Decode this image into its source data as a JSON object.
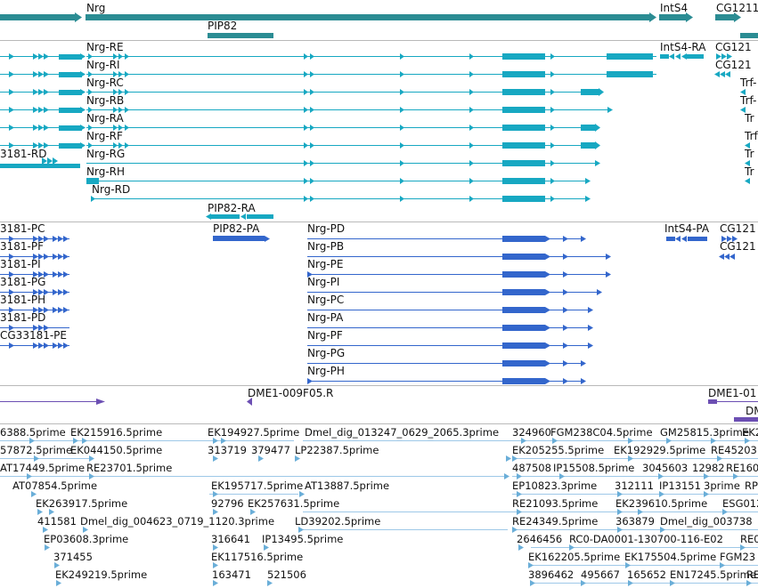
{
  "colors": {
    "gene": "#2b8c93",
    "mrna": "#17a8c2",
    "protein": "#3366cc",
    "est": "#6aaed8",
    "est_line": "#9ec8e8",
    "match": "#6c4fb3",
    "separator": "#b9b9b9"
  },
  "tracks": {
    "gene": {
      "labels": [
        "Nrg",
        "IntS4",
        "CG1211",
        "PIP82"
      ]
    },
    "transcript": {
      "labels": [
        "Nrg-RE",
        "IntS4-RA",
        "CG121",
        "Nrg-RI",
        "CG121",
        "Nrg-RC",
        "Trf-",
        "Nrg-RB",
        "Trf-",
        "Nrg-RA",
        "Trf",
        "Nrg-RF",
        "Tr",
        "3181-RD",
        "Nrg-RG",
        "Tr",
        "Nrg-RH",
        "Tr",
        "Nrg-RD",
        "PIP82-RA"
      ]
    },
    "protein": {
      "labels": [
        "3181-PC",
        "PIP82-PA",
        "Nrg-PD",
        "IntS4-PA",
        "CG121",
        "3181-PF",
        "Nrg-PB",
        "CG121",
        "3181-PI",
        "Nrg-PE",
        "3181-PG",
        "Nrg-PI",
        "3181-PH",
        "Nrg-PC",
        "3181-PD",
        "Nrg-PA",
        "CG33181-PE",
        "Nrg-PF",
        "Nrg-PG",
        "Nrg-PH"
      ]
    },
    "match": {
      "labels": [
        "DME1-009F05.R",
        "DME1-01",
        "DM"
      ]
    },
    "est": {
      "labels": [
        "6388.5prime",
        "EK215916.5prime",
        "EK194927.5prime",
        "Dmel_dig_013247_0629_2065.3prime",
        "324960",
        "FGM238C04.5prime",
        "GM25815.3prime",
        "EK20",
        "57872.5prime",
        "EK044150.5prime",
        "313719",
        "379477",
        "LP22387.5prime",
        "EK205255.5prime",
        "EK192929.5prime",
        "RE45203",
        "AT17449.5prime",
        "RE23701.5prime",
        "487508",
        "IP15508.5prime",
        "3045603",
        "12982",
        "RE160",
        "AT07854.5prime",
        "EK195717.5prime",
        "AT13887.5prime",
        "EP10823.3prime",
        "312111",
        "IP13151",
        "3prime",
        "RP",
        "EK263917.5prime",
        "92796",
        "EK257631.5prime",
        "RE21093.5prime",
        "EK239610.5prime",
        "ESG012",
        "411581",
        "Dmel_dig_004623_0719_1120.3prime",
        "LD39202.5prime",
        "RE24349.5prime",
        "363879",
        "Dmel_dig_003738",
        "EP03608.3prime",
        "316641",
        "IP13495.5prime",
        "2646456",
        "RC0-DA0001-130700-116-E02",
        "RE0",
        "371455",
        "EK117516.5prime",
        "EK162205.5prime",
        "EK175504.5prime",
        "FGM23",
        "EK249219.5prime",
        "163471",
        "521506",
        "3896462",
        "495667",
        "165652",
        "EN17245.5prime",
        "RE"
      ]
    }
  }
}
